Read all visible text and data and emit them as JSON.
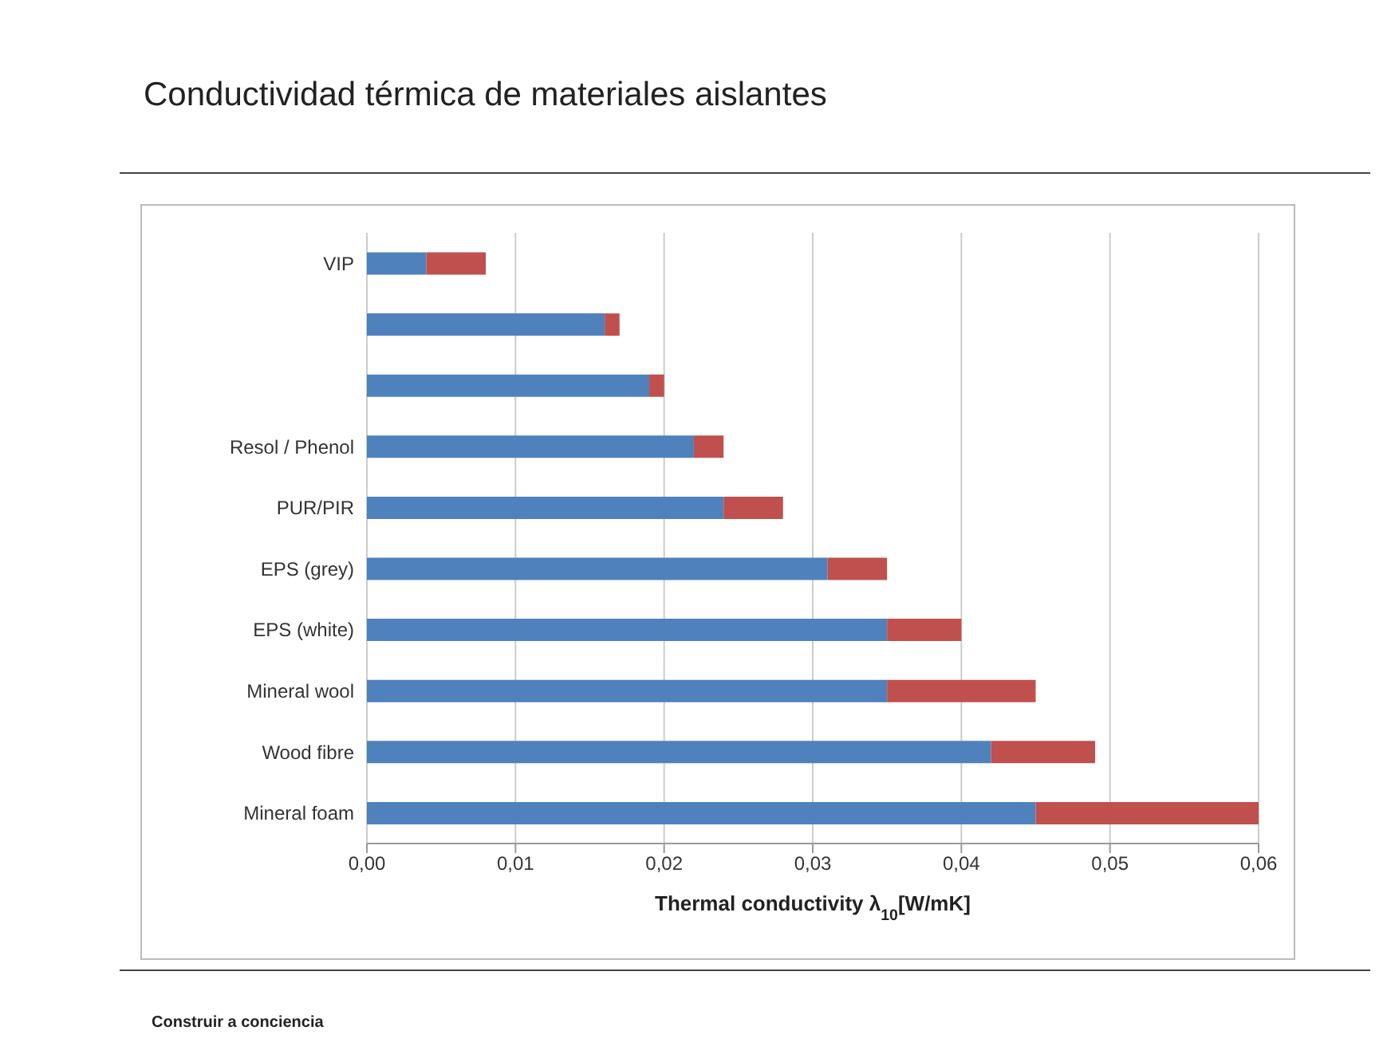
{
  "chart_data": {
    "type": "bar",
    "title": "Conductividad térmica de materiales aislantes",
    "xlabel": "Thermal conductivity  λ$_{10}$[W/mK]",
    "categories": [
      "VIP",
      null,
      null,
      "Resol / Phenol",
      "PUR/PIR",
      "EPS (grey)",
      "EPS (white)",
      "Mineral wool",
      "Wood fibre",
      "Mineral foam"
    ],
    "series": [
      {
        "color": "#4f81bd",
        "values": [
          0.004,
          0.016,
          0.019,
          0.022,
          0.024,
          0.031,
          0.035,
          0.035,
          0.042,
          0.045
        ]
      },
      {
        "color": "#c0504d",
        "values": [
          0.004,
          0.001,
          0.001,
          0.002,
          0.004,
          0.004,
          0.005,
          0.01,
          0.007,
          0.015
        ]
      }
    ],
    "stacked": true,
    "orientation": "horizontal",
    "xlim": [
      0,
      0.06
    ],
    "xticks": [
      {
        "value": 0,
        "label": "0,00"
      },
      {
        "value": 0.01,
        "label": "0,01"
      },
      {
        "value": 0.02,
        "label": "0,02"
      },
      {
        "value": 0.03,
        "label": "0,03"
      },
      {
        "value": 0.04,
        "label": "0,04"
      },
      {
        "value": 0.05,
        "label": "0,05"
      },
      {
        "value": 0.06,
        "label": "0,06"
      }
    ],
    "grid": "x",
    "annotations": [
      "Construir a conciencia"
    ]
  }
}
